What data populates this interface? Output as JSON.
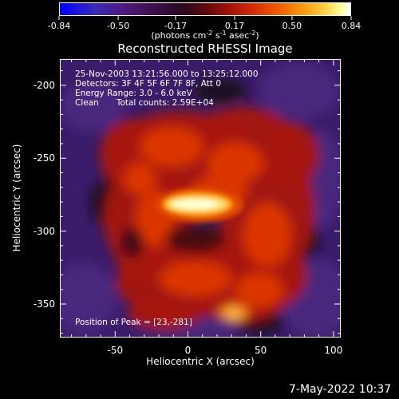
{
  "colorbar": {
    "tick_labels": [
      "-0.84",
      "-0.50",
      "-0.17",
      "0.17",
      "0.50",
      "0.84"
    ],
    "tick_values": [
      -0.84,
      -0.5,
      -0.17,
      0.17,
      0.5,
      0.84
    ],
    "unit_base": "(photons cm",
    "unit_exp1": "-2",
    "unit_mid1": " s",
    "unit_exp2": "-1",
    "unit_mid2": " asec",
    "unit_exp3": "-2",
    "unit_end": ")",
    "range": [
      -0.84,
      0.84
    ]
  },
  "title": "Reconstructed RHESSI Image",
  "info": {
    "line1": "25-Nov-2003 13:21:56.000 to 13:25:12.000",
    "line2": "Detectors: 3F 4F 5F 6F 7F 8F, Att 0",
    "line3": "Energy Range: 3.0 - 6.0 keV",
    "line4_method": "Clean",
    "line4_counts": "Total counts: 2.59E+04"
  },
  "peak": "Position of Peak = [23,-281]",
  "axes": {
    "xlabel": "Heliocentric X (arcsec)",
    "ylabel": "Heliocentric Y (arcsec)",
    "xticks": [
      "-50",
      "0",
      "50",
      "100"
    ],
    "xtick_values": [
      -50,
      0,
      50,
      100
    ],
    "yticks": [
      "-200",
      "-250",
      "-300",
      "-350"
    ],
    "ytick_values": [
      -200,
      -250,
      -300,
      -350
    ],
    "xlim": [
      -88,
      105
    ],
    "ylim": [
      -373,
      -182
    ]
  },
  "timestamp": "7-May-2022 10:37",
  "image_data": {
    "peak_position": [
      23,
      -281
    ],
    "peak_value": 0.84,
    "colormap": "rainbow-blue-red-yellow-white"
  }
}
